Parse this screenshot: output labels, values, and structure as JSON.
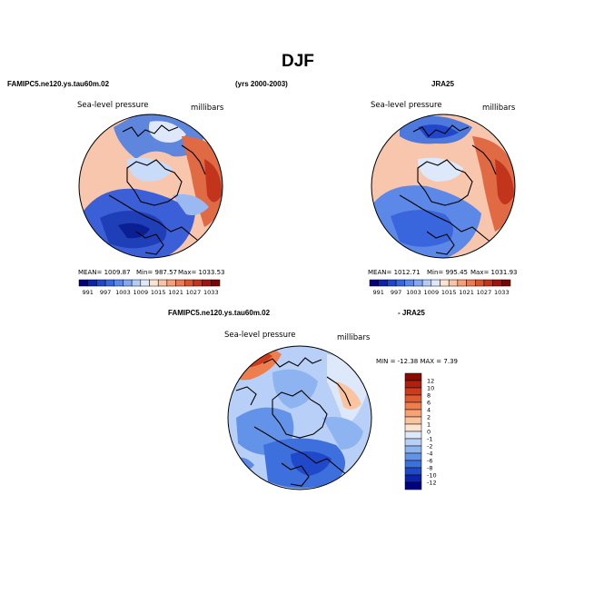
{
  "page": {
    "title": "DJF"
  },
  "top_left": {
    "case_title": "FAMIPC5.ne120.ys.tau60m.02",
    "field_label": "Sea-level pressure",
    "units_label": "millibars",
    "stats": {
      "mean": "MEAN= 1009.87",
      "min": "Min= 987.57",
      "max": "Max= 1033.53"
    }
  },
  "years_label": "(yrs 2000-2003)",
  "top_right": {
    "case_title": "JRA25",
    "field_label": "Sea-level pressure",
    "units_label": "millibars",
    "stats": {
      "mean": "MEAN= 1012.71",
      "min": "Min= 995.45",
      "max": "Max= 1031.93"
    }
  },
  "abs_colorbar": {
    "colors": [
      "#00007f",
      "#0a23a8",
      "#2046cc",
      "#3a66dd",
      "#5c88e8",
      "#86a8f0",
      "#b4cdf8",
      "#dde9fb",
      "#fde3d4",
      "#f9c3a5",
      "#f3a07b",
      "#e97a55",
      "#d9552f",
      "#c2341b",
      "#a0140b",
      "#7b0300"
    ],
    "labels": [
      "991",
      "997",
      "1003",
      "1009",
      "1015",
      "1021",
      "1027",
      "1033"
    ]
  },
  "diff": {
    "case_title": "FAMIPC5.ne120.ys.tau60m.02",
    "minus_label": "- JRA25",
    "field_label": "Sea-level pressure",
    "units_label": "millibars",
    "minmax": "MIN = -12.38  MAX =    7.39"
  },
  "diff_colorbar": {
    "colors": [
      "#8b0a00",
      "#b02010",
      "#cc3b1c",
      "#e05b30",
      "#ee7e4d",
      "#f6a176",
      "#fbc4a0",
      "#fde4d2",
      "#dde8fb",
      "#b8d0f7",
      "#8db3f1",
      "#6393e8",
      "#3d70dc",
      "#2049c9",
      "#0a23a8",
      "#000080"
    ],
    "labels": [
      "12",
      "10",
      "8",
      "6",
      "4",
      "2",
      "1",
      "0",
      "-1",
      "-2",
      "-4",
      "-6",
      "-8",
      "-10",
      "-12"
    ]
  }
}
